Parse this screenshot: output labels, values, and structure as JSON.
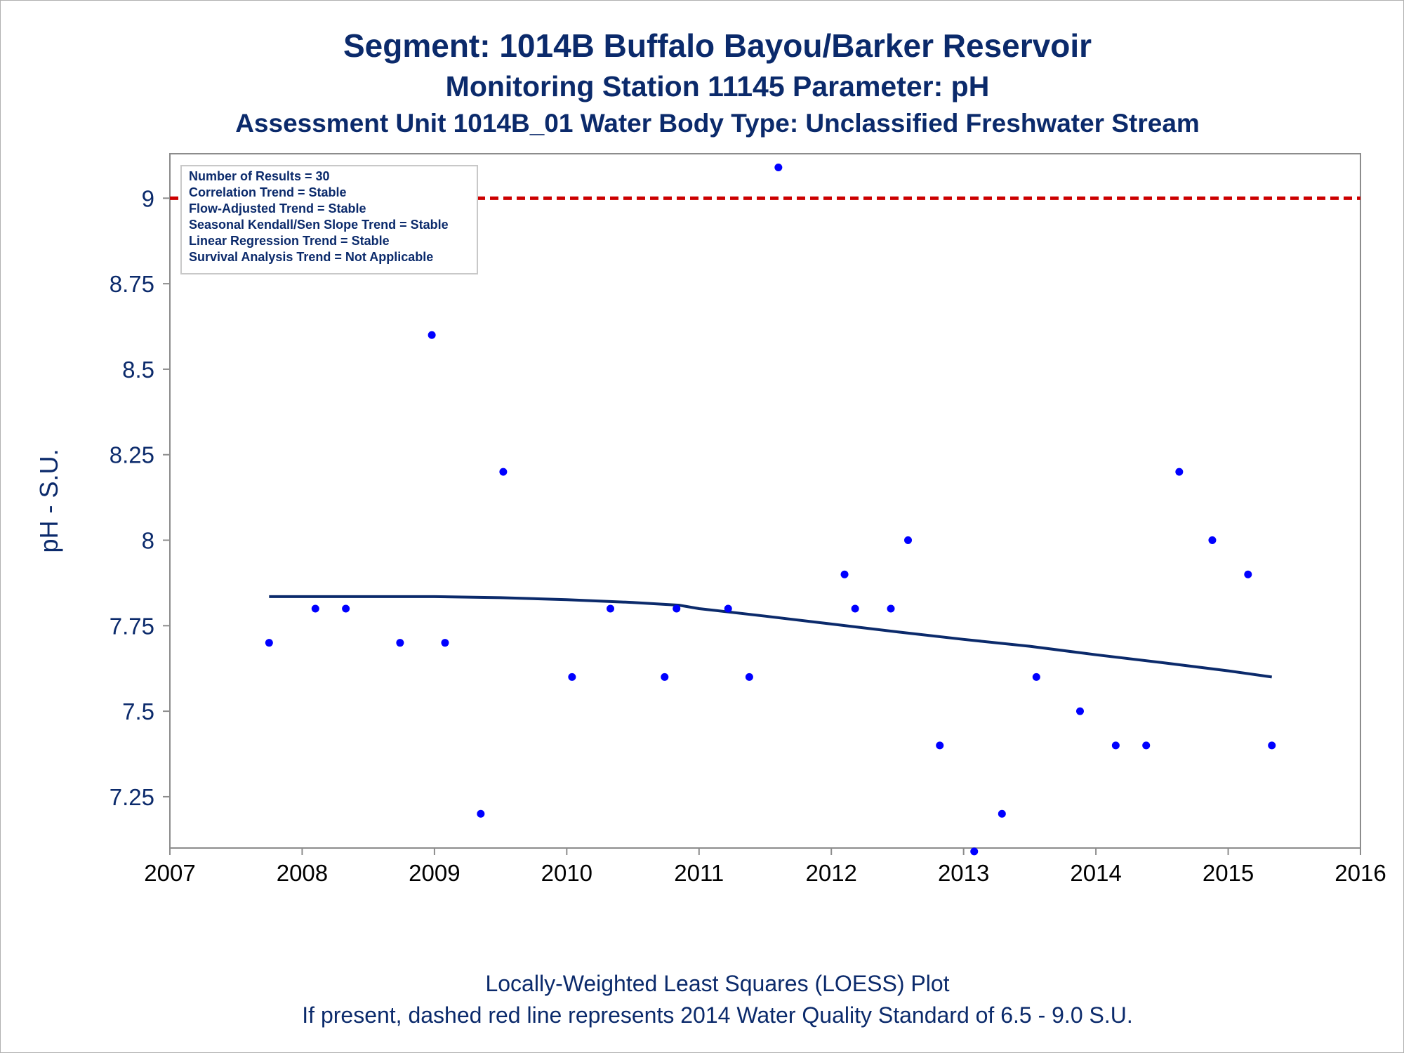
{
  "header": {
    "title": "Segment: 1014B  Buffalo Bayou/Barker Reservoir",
    "subtitle": "Monitoring Station 11145 Parameter: pH",
    "subtitle2": "Assessment Unit 1014B_01   Water Body Type: Unclassified Freshwater Stream"
  },
  "footer": {
    "line1": "Locally-Weighted Least Squares (LOESS) Plot",
    "line2": "If present, dashed red line represents 2014 Water Quality Standard of 6.5 - 9.0 S.U."
  },
  "legend_box": [
    "Number of Results = 30",
    "Correlation Trend = Stable",
    "Flow-Adjusted Trend = Stable",
    "Seasonal Kendall/Sen Slope Trend = Stable",
    "Linear Regression Trend = Stable",
    "Survival Analysis Trend = Not Applicable"
  ],
  "colors": {
    "text": "#0b2a6b",
    "points": "#0000ff",
    "loess": "#0b2a6b",
    "standard_line": "#cc0000",
    "axis": "#8c8c8c"
  },
  "chart_data": {
    "type": "scatter",
    "xlabel": "",
    "ylabel": "pH - S.U.",
    "xlim": [
      2007,
      2016
    ],
    "ylim": [
      7.1,
      9.13
    ],
    "x_ticks": [
      "2007",
      "2008",
      "2009",
      "2010",
      "2011",
      "2012",
      "2013",
      "2014",
      "2015",
      "2016"
    ],
    "y_ticks": [
      "7.25",
      "7.5",
      "7.75",
      "8",
      "8.25",
      "8.5",
      "8.75",
      "9"
    ],
    "grid": false,
    "legend_placement": "top-left",
    "points": {
      "x": [
        2007.75,
        2008.1,
        2008.33,
        2008.74,
        2008.98,
        2009.08,
        2009.35,
        2009.52,
        2010.04,
        2010.33,
        2010.74,
        2010.83,
        2011.22,
        2011.38,
        2011.6,
        2012.1,
        2012.18,
        2012.45,
        2012.58,
        2012.82,
        2013.08,
        2013.29,
        2013.55,
        2013.88,
        2014.15,
        2014.38,
        2014.63,
        2014.88,
        2015.15,
        2015.33
      ],
      "y": [
        7.7,
        7.8,
        7.8,
        7.7,
        8.6,
        7.7,
        7.2,
        8.2,
        7.6,
        7.8,
        7.6,
        7.8,
        7.8,
        7.6,
        9.09,
        7.9,
        7.8,
        7.8,
        8.0,
        7.4,
        7.09,
        7.2,
        7.6,
        7.5,
        7.4,
        7.4,
        8.2,
        8.0,
        7.9,
        7.4
      ]
    },
    "loess": {
      "x": [
        2007.75,
        2008.5,
        2009.0,
        2009.5,
        2010.0,
        2010.5,
        2010.85,
        2011.0,
        2011.5,
        2012.0,
        2012.5,
        2013.0,
        2013.5,
        2014.0,
        2014.5,
        2015.0,
        2015.33
      ],
      "y": [
        7.835,
        7.835,
        7.835,
        7.832,
        7.826,
        7.818,
        7.81,
        7.8,
        7.778,
        7.755,
        7.732,
        7.71,
        7.69,
        7.665,
        7.642,
        7.618,
        7.6
      ]
    },
    "standard_line": {
      "y": 9.0
    }
  }
}
